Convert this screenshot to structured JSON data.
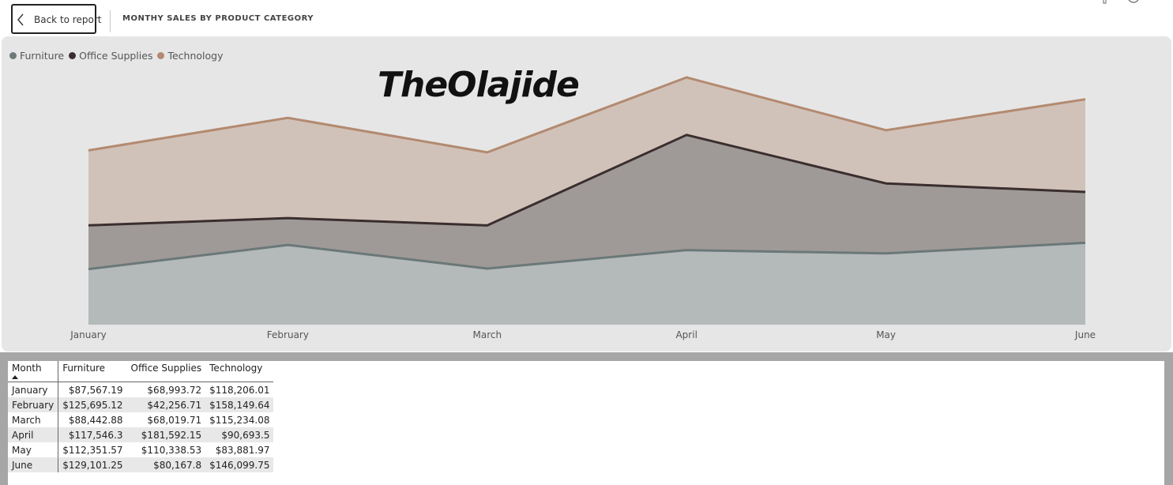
{
  "header": {
    "back_label": "Back to report",
    "title": "MONTHY SALES BY PRODUCT CATEGORY"
  },
  "watermark": "TheOlajide",
  "legend": [
    {
      "label": "Furniture",
      "color": "#6b7b7b"
    },
    {
      "label": "Office Supplies",
      "color": "#3a2e2e"
    },
    {
      "label": "Technology",
      "color": "#b38a70"
    }
  ],
  "chart_data": {
    "type": "area",
    "stacked": true,
    "categories": [
      "January",
      "February",
      "March",
      "April",
      "May",
      "June"
    ],
    "series": [
      {
        "name": "Furniture",
        "values": [
          87567.19,
          125695.12,
          88442.88,
          117546.3,
          112351.57,
          129101.25
        ],
        "line_color": "#6b7878",
        "fill_color": "#b4b9ba"
      },
      {
        "name": "Office Supplies",
        "values": [
          68993.72,
          42256.71,
          68019.71,
          181592.15,
          110338.53,
          80167.8
        ],
        "line_color": "#3a2e2e",
        "fill_color": "#9f9a98"
      },
      {
        "name": "Technology",
        "values": [
          118206.01,
          158149.64,
          115234.08,
          90693.5,
          83881.97,
          146099.75
        ],
        "line_color": "#b38a70",
        "fill_color": "#d1c2b9"
      }
    ],
    "legend_position": "top-left",
    "grid": false
  },
  "table": {
    "headers": [
      "Month",
      "Furniture",
      "Office Supplies",
      "Technology"
    ],
    "sort_column": "Month",
    "rows": [
      [
        "January",
        "$87,567.19",
        "$68,993.72",
        "$118,206.01"
      ],
      [
        "February",
        "$125,695.12",
        "$42,256.71",
        "$158,149.64"
      ],
      [
        "March",
        "$88,442.88",
        "$68,019.71",
        "$115,234.08"
      ],
      [
        "April",
        "$117,546.3",
        "$181,592.15",
        "$90,693.5"
      ],
      [
        "May",
        "$112,351.57",
        "$110,338.53",
        "$83,881.97"
      ],
      [
        "June",
        "$129,101.25",
        "$80,167.8",
        "$146,099.75"
      ]
    ]
  }
}
